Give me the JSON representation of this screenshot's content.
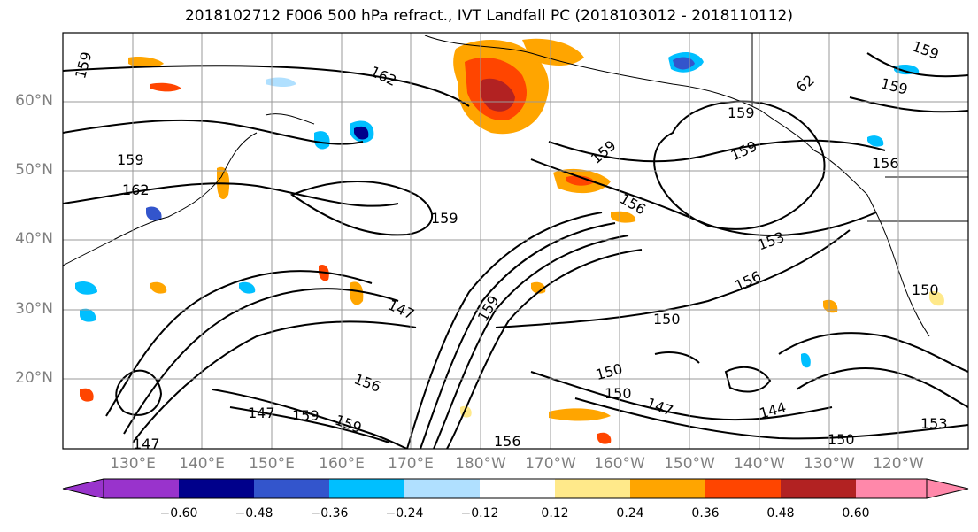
{
  "title": "2018102712 F006 500 hPa refract., IVT Landfall PC (2018103012 - 2018110112)",
  "lat_labels": [
    "60°N",
    "50°N",
    "40°N",
    "30°N",
    "20°N"
  ],
  "lon_labels": [
    "130°E",
    "140°E",
    "150°E",
    "160°E",
    "170°E",
    "180°W",
    "170°W",
    "160°W",
    "150°W",
    "140°W",
    "130°W",
    "120°W"
  ],
  "colorbar": {
    "ticks": [
      "−0.60",
      "−0.48",
      "−0.36",
      "−0.24",
      "−0.12",
      "0.12",
      "0.24",
      "0.36",
      "0.48",
      "0.60"
    ],
    "colors": [
      "#9933cc",
      "#00008b",
      "#3355cc",
      "#00bfff",
      "#b0e0ff",
      "#ffffff",
      "#ffe98a",
      "#ffa500",
      "#ff4500",
      "#b22222",
      "#ff88aa"
    ]
  },
  "contour_labels": [
    "159",
    "162",
    "159",
    "162",
    "159",
    "159",
    "159",
    "156",
    "159",
    "153",
    "156",
    "150",
    "147",
    "159",
    "150",
    "147",
    "150",
    "147",
    "144",
    "159",
    "156",
    "159",
    "156",
    "153",
    "150",
    "62",
    "159",
    "159",
    "156",
    "150",
    "147"
  ]
}
